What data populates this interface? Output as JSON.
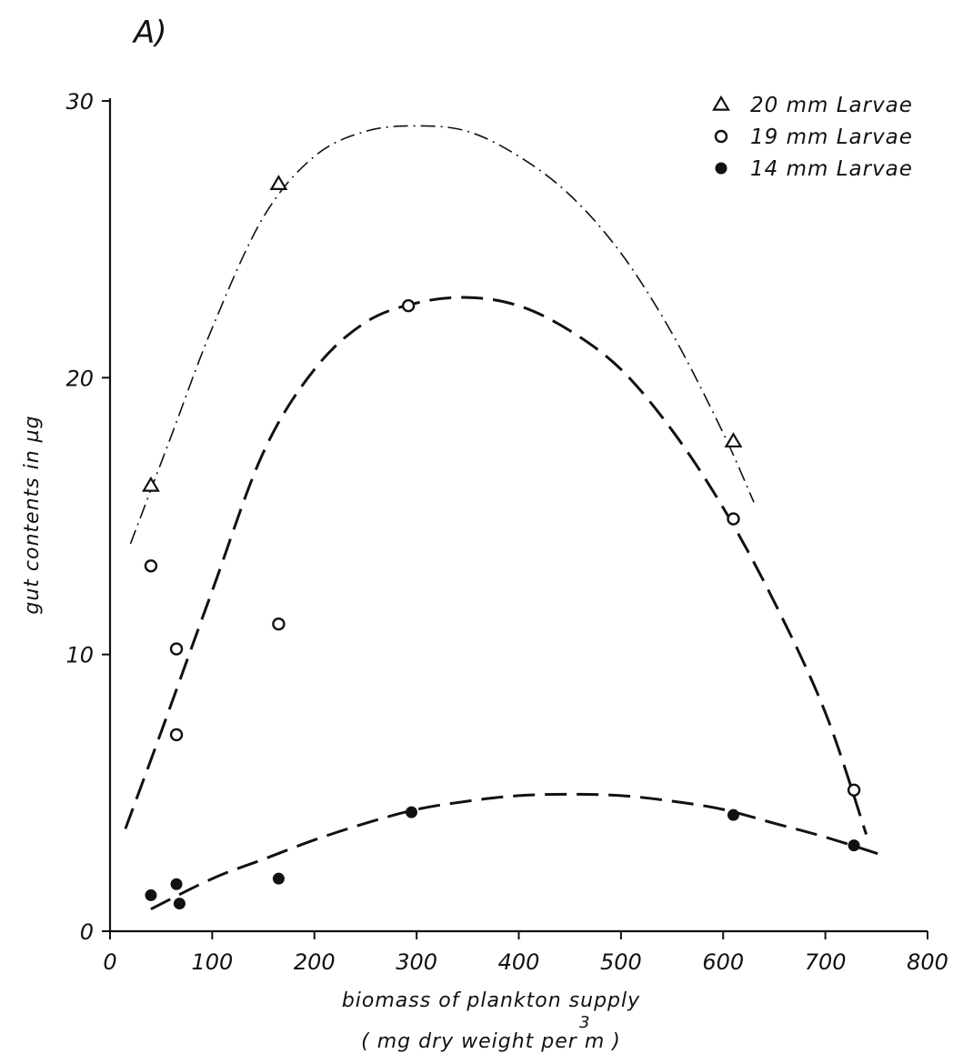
{
  "panel_label": "A)",
  "chart_data": {
    "type": "scatter",
    "title": "",
    "xlabel_line1": "biomass of plankton supply",
    "xlabel_line2": "( mg  dry   weight  per  m )",
    "xlabel_superscript": "3",
    "ylabel": "gut  contents  in  µg",
    "xlim": [
      0,
      800
    ],
    "ylim": [
      0,
      30
    ],
    "x_ticks": [
      0,
      100,
      200,
      300,
      400,
      500,
      600,
      700,
      800
    ],
    "x_tick_labels": [
      "0",
      "100",
      "200",
      "300",
      "400",
      "500",
      "600",
      "700",
      "800"
    ],
    "y_ticks": [
      0,
      10,
      20,
      30
    ],
    "y_tick_labels": [
      "0",
      "10",
      "20",
      "30"
    ],
    "grid": false,
    "legend_position": "top-right",
    "series": [
      {
        "name": "20 mm  Larvae",
        "marker": "triangle-open",
        "line_style": "dash-dot",
        "points": [
          [
            40,
            16.1
          ],
          [
            165,
            27.0
          ],
          [
            610,
            17.7
          ]
        ],
        "fit_curve": [
          [
            20,
            14
          ],
          [
            60,
            17.9
          ],
          [
            100,
            21.8
          ],
          [
            150,
            25.8
          ],
          [
            200,
            28.0
          ],
          [
            250,
            28.9
          ],
          [
            300,
            29.1
          ],
          [
            350,
            28.9
          ],
          [
            400,
            28.0
          ],
          [
            450,
            26.6
          ],
          [
            500,
            24.5
          ],
          [
            550,
            21.6
          ],
          [
            600,
            18.0
          ],
          [
            630,
            15.5
          ]
        ]
      },
      {
        "name": "19 mm  Larvae",
        "marker": "circle-open",
        "line_style": "dashed",
        "points": [
          [
            40,
            13.2
          ],
          [
            65,
            10.2
          ],
          [
            65,
            7.1
          ],
          [
            165,
            11.1
          ],
          [
            292,
            22.6
          ],
          [
            610,
            14.9
          ],
          [
            728,
            5.1
          ]
        ],
        "fit_curve": [
          [
            15,
            3.7
          ],
          [
            50,
            7.2
          ],
          [
            100,
            12.3
          ],
          [
            150,
            17.3
          ],
          [
            200,
            20.3
          ],
          [
            250,
            22.0
          ],
          [
            300,
            22.7
          ],
          [
            350,
            22.9
          ],
          [
            400,
            22.6
          ],
          [
            450,
            21.7
          ],
          [
            500,
            20.3
          ],
          [
            550,
            18.1
          ],
          [
            600,
            15.3
          ],
          [
            650,
            11.9
          ],
          [
            700,
            7.9
          ],
          [
            740,
            3.5
          ]
        ]
      },
      {
        "name": "14 mm  Larvae",
        "marker": "circle-filled",
        "line_style": "dashed",
        "points": [
          [
            40,
            1.3
          ],
          [
            65,
            1.7
          ],
          [
            68,
            1.0
          ],
          [
            165,
            1.9
          ],
          [
            295,
            4.3
          ],
          [
            610,
            4.2
          ],
          [
            728,
            3.1
          ]
        ],
        "fit_curve": [
          [
            40,
            0.8
          ],
          [
            100,
            1.9
          ],
          [
            150,
            2.6
          ],
          [
            200,
            3.3
          ],
          [
            250,
            3.9
          ],
          [
            300,
            4.4
          ],
          [
            350,
            4.7
          ],
          [
            400,
            4.9
          ],
          [
            450,
            4.95
          ],
          [
            500,
            4.9
          ],
          [
            550,
            4.7
          ],
          [
            600,
            4.4
          ],
          [
            650,
            3.9
          ],
          [
            700,
            3.4
          ],
          [
            760,
            2.7
          ]
        ]
      }
    ]
  }
}
